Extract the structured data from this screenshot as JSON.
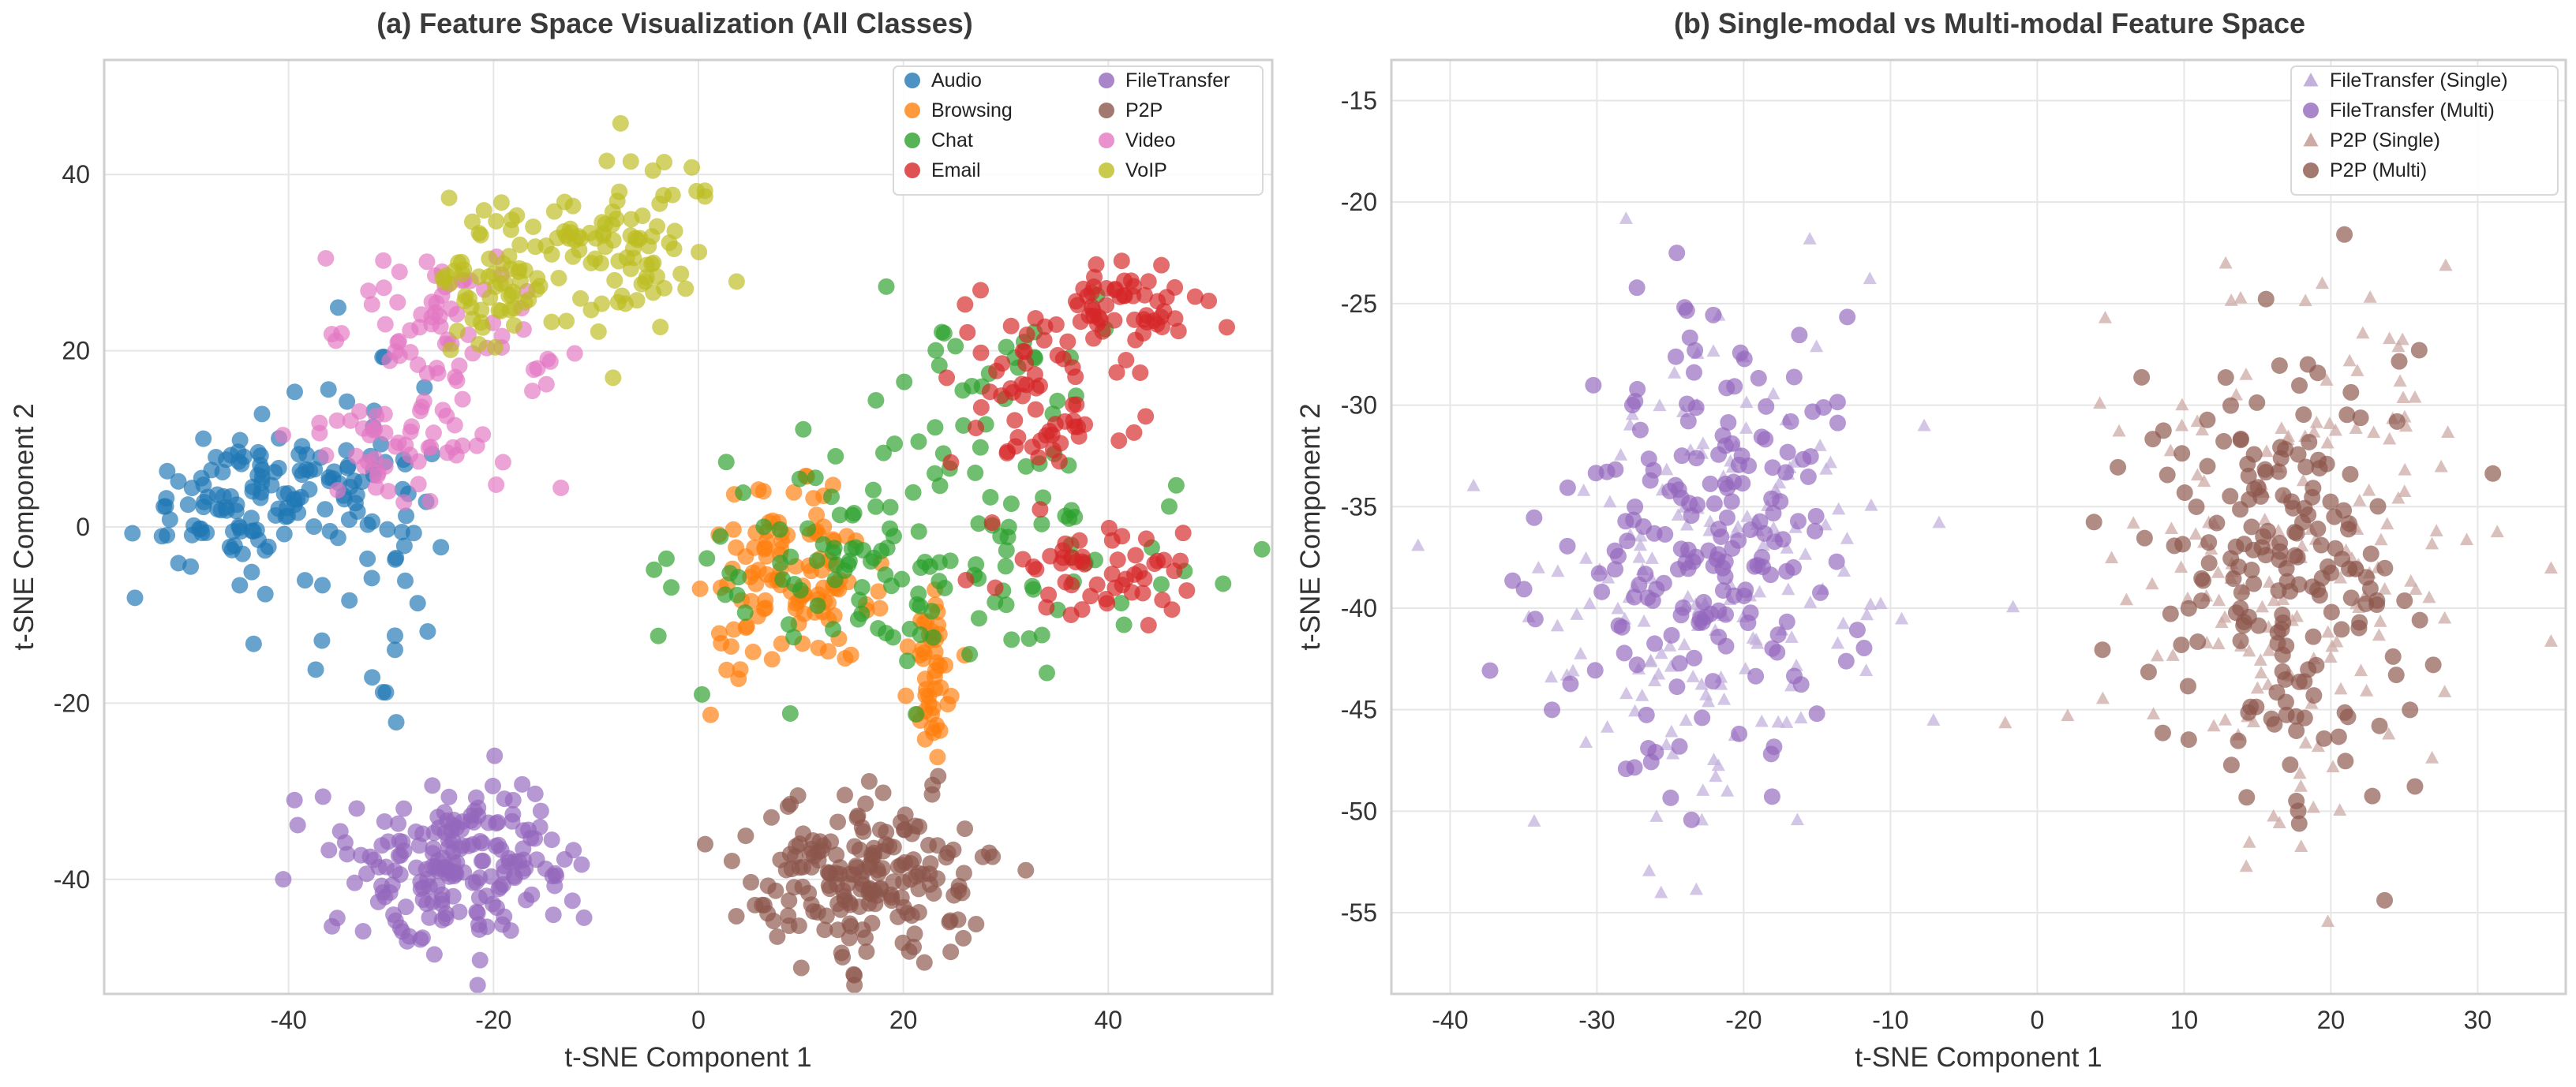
{
  "chart_data": [
    {
      "type": "scatter",
      "title": "(a) Feature Space Visualization (All Classes)",
      "xlabel": "t-SNE Component 1",
      "ylabel": "t-SNE Component 2",
      "xlim": [
        -58,
        56
      ],
      "ylim": [
        -53,
        53
      ],
      "xticks": [
        -40,
        -20,
        0,
        20,
        40
      ],
      "yticks": [
        -40,
        -20,
        0,
        20,
        40
      ],
      "grid": true,
      "legend_position": "top-right",
      "legend_columns": 2,
      "series": [
        {
          "name": "Audio",
          "color": "#1f77b4",
          "marker": "circle",
          "count": 170,
          "clusters": [
            {
              "cx": -45,
              "cy": 3,
              "sx": 5,
              "sy": 4,
              "n": 95
            },
            {
              "cx": -33,
              "cy": 3,
              "sx": 4,
              "sy": 8,
              "n": 75
            }
          ]
        },
        {
          "name": "Browsing",
          "color": "#ff7f0e",
          "marker": "circle",
          "count": 160,
          "clusters": [
            {
              "cx": 9,
              "cy": -7,
              "sx": 4,
              "sy": 5,
              "n": 115
            },
            {
              "cx": 23,
              "cy": -16,
              "sx": 1.6,
              "sy": 5,
              "n": 45
            }
          ]
        },
        {
          "name": "Chat",
          "color": "#2ca02c",
          "marker": "circle",
          "count": 170,
          "clusters": [
            {
              "cx": 17,
              "cy": -3,
              "sx": 9,
              "sy": 7,
              "n": 100
            },
            {
              "cx": 33,
              "cy": -4,
              "sx": 9,
              "sy": 5,
              "n": 40
            },
            {
              "cx": 28,
              "cy": 18,
              "sx": 5,
              "sy": 5,
              "n": 30
            }
          ]
        },
        {
          "name": "Email",
          "color": "#d62728",
          "marker": "circle",
          "count": 170,
          "clusters": [
            {
              "cx": 33,
              "cy": 15,
              "sx": 5,
              "sy": 6,
              "n": 70
            },
            {
              "cx": 43,
              "cy": 25,
              "sx": 4,
              "sy": 2.5,
              "n": 50
            },
            {
              "cx": 39,
              "cy": -5,
              "sx": 5,
              "sy": 3,
              "n": 50
            }
          ]
        },
        {
          "name": "FileTransfer",
          "color": "#9467bd",
          "marker": "circle",
          "count": 190,
          "clusters": [
            {
              "cx": -23,
              "cy": -38,
              "sx": 5.5,
              "sy": 4.5,
              "n": 190
            }
          ]
        },
        {
          "name": "P2P",
          "color": "#8c564b",
          "marker": "circle",
          "count": 190,
          "clusters": [
            {
              "cx": 17,
              "cy": -40,
              "sx": 6,
              "sy": 4.5,
              "n": 190
            }
          ]
        },
        {
          "name": "Video",
          "color": "#e377c2",
          "marker": "circle",
          "count": 120,
          "clusters": [
            {
              "cx": -25,
              "cy": 22,
              "sx": 5,
              "sy": 5,
              "n": 70
            },
            {
              "cx": -28,
              "cy": 9,
              "sx": 6,
              "sy": 3,
              "n": 50
            }
          ]
        },
        {
          "name": "VoIP",
          "color": "#bcbd22",
          "marker": "circle",
          "count": 150,
          "clusters": [
            {
              "cx": -10,
              "cy": 33,
              "sx": 6,
              "sy": 5,
              "n": 100
            },
            {
              "cx": -20,
              "cy": 28,
              "sx": 3,
              "sy": 4,
              "n": 50
            }
          ]
        }
      ]
    },
    {
      "type": "scatter",
      "title": "(b) Single-modal vs Multi-modal Feature Space",
      "xlabel": "t-SNE Component 1",
      "ylabel": "t-SNE Component 2",
      "xlim": [
        -44,
        36
      ],
      "ylim": [
        -59,
        -13
      ],
      "xticks": [
        -40,
        -30,
        -20,
        -10,
        0,
        10,
        20,
        30
      ],
      "yticks": [
        -15,
        -20,
        -25,
        -30,
        -35,
        -40,
        -45,
        -50,
        -55
      ],
      "grid": true,
      "legend_position": "top-right",
      "legend_columns": 1,
      "series": [
        {
          "name": "FileTransfer (Single)",
          "color": "#c3b1dc",
          "marker": "triangle",
          "count": 170,
          "clusters": [
            {
              "cx": -23,
              "cy": -38,
              "sx": 6.5,
              "sy": 6,
              "n": 170
            }
          ]
        },
        {
          "name": "FileTransfer (Multi)",
          "color": "#9467bd",
          "marker": "circle",
          "count": 190,
          "clusters": [
            {
              "cx": -23,
              "cy": -37,
              "sx": 4.8,
              "sy": 5.2,
              "n": 190
            }
          ]
        },
        {
          "name": "P2P (Single)",
          "color": "#cdaba5",
          "marker": "triangle",
          "count": 170,
          "clusters": [
            {
              "cx": 18,
              "cy": -38,
              "sx": 6.5,
              "sy": 6.5,
              "n": 170
            }
          ]
        },
        {
          "name": "P2P (Multi)",
          "color": "#8c564b",
          "marker": "circle",
          "count": 190,
          "clusters": [
            {
              "cx": 17,
              "cy": -38,
              "sx": 4.8,
              "sy": 5.8,
              "n": 190
            }
          ]
        }
      ]
    }
  ]
}
